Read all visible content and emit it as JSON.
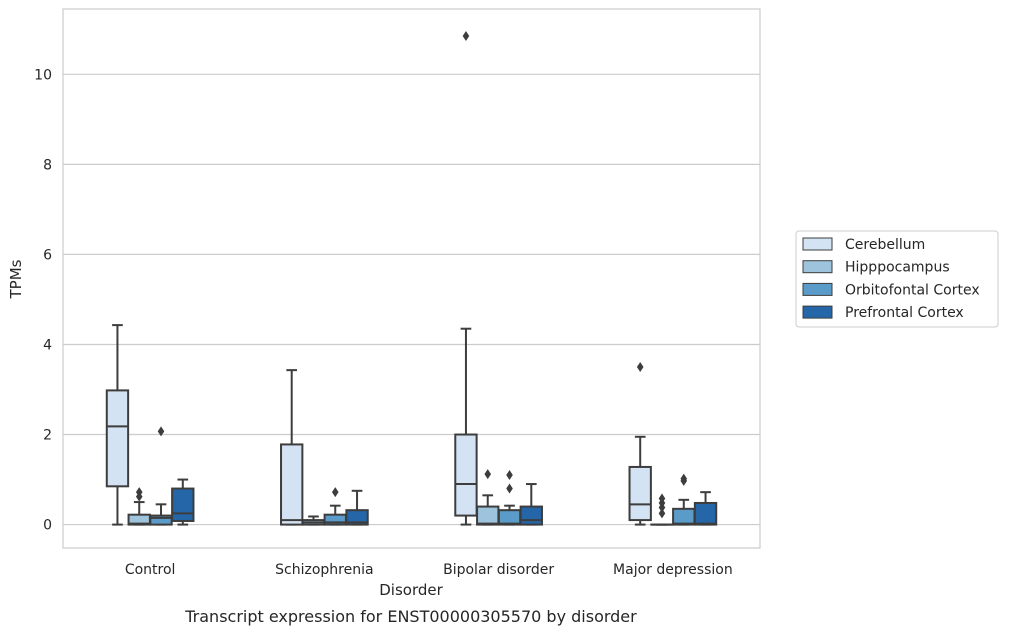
{
  "chart_data": {
    "type": "boxplot",
    "title": "",
    "caption": "Transcript expression for ENST00000305570 by disorder",
    "xlabel": "Disorder",
    "ylabel": "TPMs",
    "ylim": [
      -0.52,
      11.45
    ],
    "yticks": [
      0,
      2,
      4,
      6,
      8,
      10
    ],
    "grid": "horizontal",
    "legend_position": "right",
    "categories": [
      "Control",
      "Schizophrenia",
      "Bipolar disorder",
      "Major depression"
    ],
    "series": [
      {
        "name": "Cerebellum",
        "color": "#d4e3f3",
        "boxes": [
          {
            "whislo": 0.0,
            "q1": 0.85,
            "med": 2.18,
            "q3": 2.98,
            "whishi": 4.43,
            "fliers": []
          },
          {
            "whislo": 0.0,
            "q1": 0.0,
            "med": 0.1,
            "q3": 1.78,
            "whishi": 3.43,
            "fliers": []
          },
          {
            "whislo": 0.0,
            "q1": 0.2,
            "med": 0.9,
            "q3": 2.0,
            "whishi": 4.35,
            "fliers": [
              10.85
            ]
          },
          {
            "whislo": 0.0,
            "q1": 0.1,
            "med": 0.45,
            "q3": 1.28,
            "whishi": 1.95,
            "fliers": [
              3.5
            ]
          }
        ]
      },
      {
        "name": "Hipppocampus",
        "color": "#9dc3dd",
        "boxes": [
          {
            "whislo": 0.0,
            "q1": 0.0,
            "med": 0.02,
            "q3": 0.22,
            "whishi": 0.5,
            "fliers": [
              0.62,
              0.72
            ]
          },
          {
            "whislo": 0.0,
            "q1": 0.0,
            "med": 0.05,
            "q3": 0.1,
            "whishi": 0.18,
            "fliers": []
          },
          {
            "whislo": 0.0,
            "q1": 0.0,
            "med": 0.02,
            "q3": 0.4,
            "whishi": 0.65,
            "fliers": [
              1.12
            ]
          },
          {
            "whislo": 0.0,
            "q1": 0.0,
            "med": 0.0,
            "q3": 0.0,
            "whishi": 0.0,
            "fliers": [
              0.25,
              0.38,
              0.48,
              0.58
            ]
          }
        ]
      },
      {
        "name": "Orbitofontal Cortex",
        "color": "#5a9bc9",
        "boxes": [
          {
            "whislo": 0.0,
            "q1": 0.0,
            "med": 0.15,
            "q3": 0.2,
            "whishi": 0.45,
            "fliers": [
              2.07
            ]
          },
          {
            "whislo": 0.0,
            "q1": 0.0,
            "med": 0.05,
            "q3": 0.22,
            "whishi": 0.42,
            "fliers": [
              0.72
            ]
          },
          {
            "whislo": 0.0,
            "q1": 0.0,
            "med": 0.02,
            "q3": 0.32,
            "whishi": 0.42,
            "fliers": [
              0.8,
              1.1
            ]
          },
          {
            "whislo": 0.0,
            "q1": 0.0,
            "med": 0.02,
            "q3": 0.35,
            "whishi": 0.55,
            "fliers": [
              0.97,
              1.02
            ]
          }
        ]
      },
      {
        "name": "Prefrontal Cortex",
        "color": "#2466a8",
        "boxes": [
          {
            "whislo": 0.0,
            "q1": 0.08,
            "med": 0.25,
            "q3": 0.8,
            "whishi": 1.0,
            "fliers": []
          },
          {
            "whislo": 0.0,
            "q1": 0.0,
            "med": 0.05,
            "q3": 0.32,
            "whishi": 0.75,
            "fliers": []
          },
          {
            "whislo": 0.0,
            "q1": 0.0,
            "med": 0.1,
            "q3": 0.4,
            "whishi": 0.9,
            "fliers": []
          },
          {
            "whislo": 0.0,
            "q1": 0.0,
            "med": 0.02,
            "q3": 0.48,
            "whishi": 0.72,
            "fliers": []
          }
        ]
      }
    ]
  }
}
